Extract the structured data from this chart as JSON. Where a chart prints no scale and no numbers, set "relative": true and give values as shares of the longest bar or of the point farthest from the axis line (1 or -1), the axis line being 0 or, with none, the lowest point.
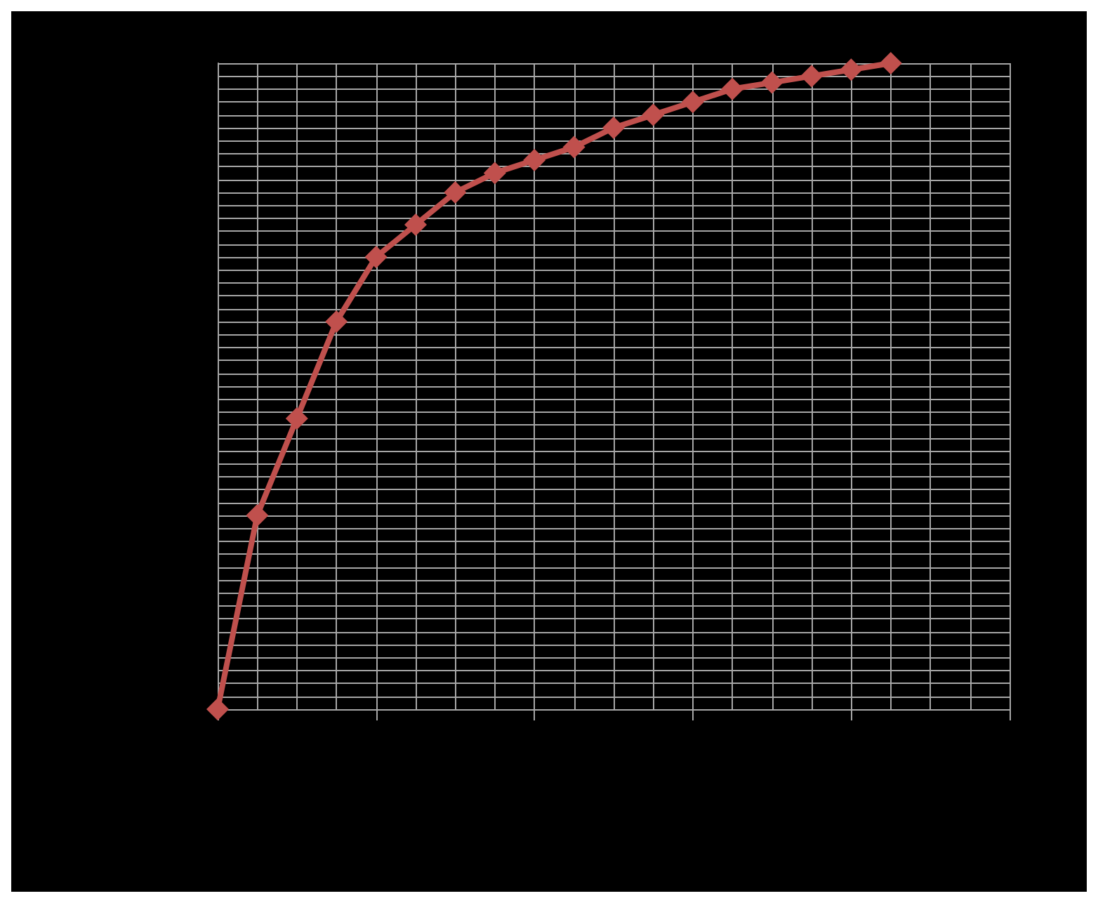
{
  "chart_data": {
    "type": "line",
    "relative": true,
    "grid": true,
    "marker": "diamond",
    "line_style": "solid",
    "categories": [
      null,
      null,
      null,
      null,
      null,
      null,
      null,
      null,
      null,
      null,
      null,
      null,
      null,
      null,
      null,
      null,
      null,
      null
    ],
    "series": [
      {
        "color": "#c0504d",
        "values": [
          0,
          0.3,
          0.45,
          0.6,
          0.7,
          0.75,
          0.8,
          0.83,
          0.85,
          0.87,
          0.9,
          0.92,
          0.94,
          0.96,
          0.97,
          0.98,
          0.99,
          1
        ]
      }
    ]
  }
}
